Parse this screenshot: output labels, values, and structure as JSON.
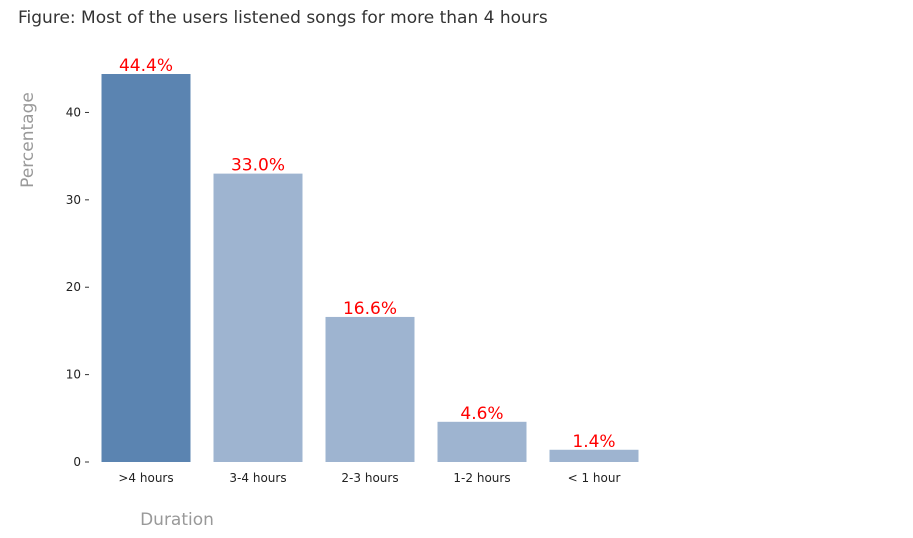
{
  "chart_data": {
    "type": "bar",
    "title": "Figure: Most of the users listened songs for more than 4 hours",
    "xlabel": "Duration",
    "ylabel": "Percentage",
    "categories": [
      ">4 hours",
      "3-4 hours",
      "2-3 hours",
      "1-2 hours",
      "< 1 hour"
    ],
    "values": [
      44.4,
      33.0,
      16.6,
      4.6,
      1.4
    ],
    "data_labels": [
      "44.4%",
      "33.0%",
      "16.6%",
      "4.6%",
      "1.4%"
    ],
    "yticks": [
      0,
      10,
      20,
      30,
      40
    ],
    "ylim": [
      0,
      44.4
    ],
    "grid": false,
    "colors": {
      "highlight_bar": "#5b84b1",
      "other_bars": "#9eb4d0",
      "data_label": "#ff0000",
      "axis_label": "#999999"
    }
  }
}
